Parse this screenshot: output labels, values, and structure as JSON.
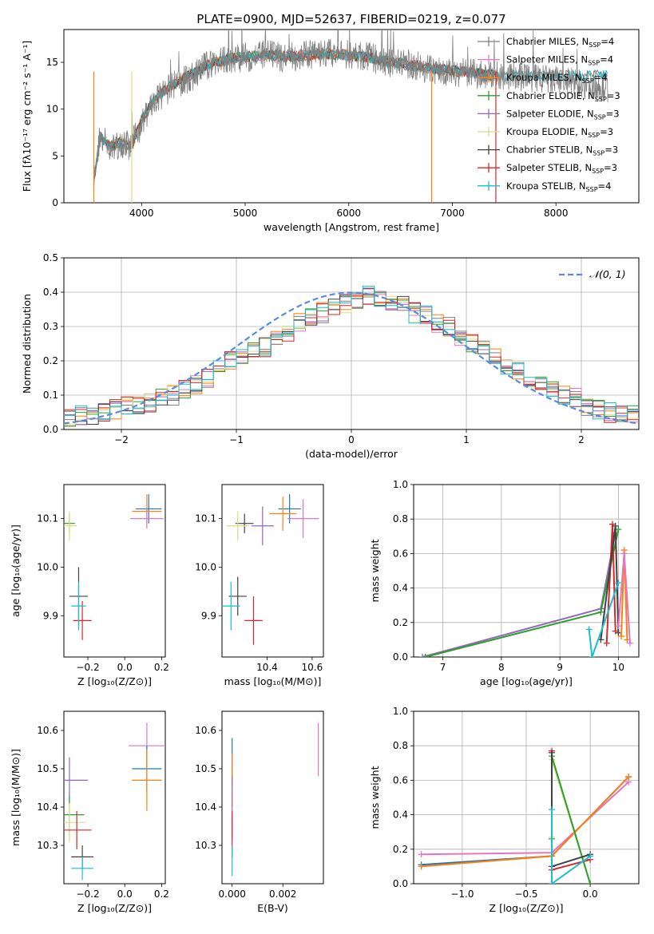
{
  "figure_title": "PLATE=0900, MJD=52637, FIBERID=0219, z=0.077",
  "legend_top": [
    {
      "label": "Chabrier MILES, N",
      "sub": "SSP",
      "tail": "=4",
      "color": "#7f7f7f"
    },
    {
      "label": "Salpeter MILES, N",
      "sub": "SSP",
      "tail": "=4",
      "color": "#e377c2"
    },
    {
      "label": "Kroupa MILES, N",
      "sub": "SSP",
      "tail": "=4",
      "color": "#ff7f0e"
    },
    {
      "label": "Chabrier ELODIE, N",
      "sub": "SSP",
      "tail": "=3",
      "color": "#2ca02c"
    },
    {
      "label": "Salpeter ELODIE, N",
      "sub": "SSP",
      "tail": "=3",
      "color": "#9467bd"
    },
    {
      "label": "Kroupa ELODIE, N",
      "sub": "SSP",
      "tail": "=3",
      "color": "#dbdb8d"
    },
    {
      "label": "Chabrier STELIB, N",
      "sub": "SSP",
      "tail": "=3",
      "color": "#404040"
    },
    {
      "label": "Salpeter STELIB, N",
      "sub": "SSP",
      "tail": "=3",
      "color": "#d62728"
    },
    {
      "label": "Kroupa STELIB, N",
      "sub": "SSP",
      "tail": "=4",
      "color": "#17becf"
    }
  ],
  "chart_data": [
    {
      "id": "spectrum",
      "type": "line",
      "xlabel": "wavelength [Angstrom, rest frame]",
      "ylabel": "Flux [fλ10⁻¹⁷ erg cm⁻² s⁻¹ A⁻¹]",
      "xlim": [
        3250,
        8800
      ],
      "ylim": [
        0,
        18.5
      ],
      "xticks": [
        "4000",
        "5000",
        "6000",
        "7000",
        "8000"
      ],
      "yticks": [
        "0",
        "5",
        "10",
        "15"
      ],
      "grid": false,
      "data_color": "#808080",
      "data": {
        "x": [
          3540,
          3600,
          3700,
          3800,
          3900,
          4000,
          4100,
          4200,
          4300,
          4400,
          4500,
          4600,
          4700,
          4800,
          4900,
          5000,
          5200,
          5400,
          5600,
          5800,
          6000,
          6200,
          6400,
          6600,
          6800,
          7000,
          7200,
          7400,
          7600,
          7800,
          8000,
          8200,
          8400,
          8500
        ],
        "y": [
          2.0,
          7.5,
          5.5,
          6.5,
          6.0,
          8.5,
          10.5,
          11.5,
          12.5,
          13.0,
          13.5,
          14.5,
          15.0,
          15.2,
          15.5,
          15.5,
          15.8,
          15.5,
          15.8,
          16.0,
          15.8,
          15.5,
          15.0,
          14.8,
          14.2,
          14.0,
          13.8,
          13.6,
          13.5,
          13.3,
          13.0,
          12.8,
          12.5,
          12.3
        ]
      },
      "model": {
        "x": [
          3540,
          3600,
          3700,
          3800,
          3900,
          4000,
          4100,
          4200,
          4300,
          4400,
          4500,
          4600,
          4700,
          4800,
          4900,
          5000,
          5200,
          5400,
          5600,
          5800,
          6000,
          6200,
          6400,
          6600,
          6800,
          7000,
          7200,
          7400
        ],
        "y": [
          2.5,
          7.0,
          6.0,
          6.5,
          6.0,
          8.8,
          10.6,
          11.8,
          12.6,
          13.2,
          13.8,
          14.5,
          15.0,
          15.2,
          15.5,
          15.6,
          15.8,
          15.6,
          15.8,
          15.9,
          15.8,
          15.5,
          15.0,
          14.7,
          14.3,
          14.1,
          13.9,
          13.6
        ]
      }
    },
    {
      "id": "residuals",
      "type": "line",
      "xlabel": "(data-model)/error",
      "ylabel": "Normed distribution",
      "xlim": [
        -2.5,
        2.5
      ],
      "ylim": [
        0,
        0.5
      ],
      "xticks": [
        "−2",
        "−1",
        "0",
        "1",
        "2"
      ],
      "yticks": [
        "0.0",
        "0.1",
        "0.2",
        "0.3",
        "0.4",
        "0.5"
      ],
      "grid": true,
      "legend": "𝒩(0, 1)",
      "reference": "N(0,1) gaussian",
      "bins": {
        "start": -2.5,
        "width": 0.1
      },
      "histogram_example": [
        0.03,
        0.04,
        0.04,
        0.05,
        0.06,
        0.07,
        0.07,
        0.08,
        0.09,
        0.1,
        0.12,
        0.13,
        0.15,
        0.18,
        0.2,
        0.22,
        0.23,
        0.24,
        0.27,
        0.28,
        0.31,
        0.33,
        0.34,
        0.36,
        0.37,
        0.38,
        0.39,
        0.38,
        0.37,
        0.36,
        0.34,
        0.33,
        0.31,
        0.3,
        0.27,
        0.25,
        0.23,
        0.21,
        0.19,
        0.17,
        0.14,
        0.13,
        0.12,
        0.1,
        0.09,
        0.07,
        0.06,
        0.05,
        0.05,
        0.04
      ]
    },
    {
      "id": "age_vs_Z",
      "type": "scatter",
      "xlabel": "Z [log₁₀(Z/Z⊙)]",
      "ylabel": "age  [log₁₀(age/yr)]",
      "xlim": [
        -0.33,
        0.22
      ],
      "ylim": [
        9.815,
        10.17
      ],
      "xticks": [
        "−0.2",
        "0.0",
        "0.2"
      ],
      "yticks": [
        "9.9",
        "10.0",
        "10.1"
      ],
      "grid": false,
      "points": [
        {
          "x": 0.13,
          "y": 10.12,
          "xerr": 0.07,
          "yerr": 0.03,
          "color": "#1f77b4"
        },
        {
          "x": 0.12,
          "y": 10.115,
          "xerr": 0.08,
          "yerr": 0.035,
          "color": "#ff7f0e"
        },
        {
          "x": 0.12,
          "y": 10.1,
          "xerr": 0.09,
          "yerr": 0.02,
          "color": "#e377c2"
        },
        {
          "x": -0.3,
          "y": 10.09,
          "xerr": 0.03,
          "yerr": 0.02,
          "color": "#2ca02c"
        },
        {
          "x": -0.3,
          "y": 10.085,
          "xerr": 0.04,
          "yerr": 0.03,
          "color": "#dbdb8d"
        },
        {
          "x": -0.25,
          "y": 9.94,
          "xerr": 0.05,
          "yerr": 0.06,
          "color": "#404040"
        },
        {
          "x": -0.23,
          "y": 9.89,
          "xerr": 0.05,
          "yerr": 0.04,
          "color": "#d62728"
        },
        {
          "x": -0.25,
          "y": 9.92,
          "xerr": 0.04,
          "yerr": 0.05,
          "color": "#17becf"
        }
      ]
    },
    {
      "id": "age_vs_mass",
      "type": "scatter",
      "xlabel": "mass [log₁₀(M/M⊙)]",
      "ylabel": "",
      "xlim": [
        10.2,
        10.65
      ],
      "ylim": [
        9.815,
        10.17
      ],
      "xticks": [
        "10.4",
        "10.6"
      ],
      "yticks": [
        "9.9",
        "10.0",
        "10.1"
      ],
      "grid": false,
      "points": [
        {
          "x": 10.5,
          "y": 10.12,
          "xerr": 0.05,
          "yerr": 0.03,
          "color": "#1f77b4"
        },
        {
          "x": 10.47,
          "y": 10.11,
          "xerr": 0.06,
          "yerr": 0.035,
          "color": "#ff7f0e"
        },
        {
          "x": 10.56,
          "y": 10.1,
          "xerr": 0.07,
          "yerr": 0.04,
          "color": "#e377c2"
        },
        {
          "x": 10.38,
          "y": 10.085,
          "xerr": 0.05,
          "yerr": 0.04,
          "color": "#9467bd"
        },
        {
          "x": 10.3,
          "y": 10.09,
          "xerr": 0.04,
          "yerr": 0.02,
          "color": "#404040"
        },
        {
          "x": 10.27,
          "y": 10.085,
          "xerr": 0.05,
          "yerr": 0.03,
          "color": "#dbdb8d"
        },
        {
          "x": 10.27,
          "y": 9.94,
          "xerr": 0.04,
          "yerr": 0.04,
          "color": "#404040"
        },
        {
          "x": 10.34,
          "y": 9.89,
          "xerr": 0.04,
          "yerr": 0.05,
          "color": "#d62728"
        },
        {
          "x": 10.24,
          "y": 9.92,
          "xerr": 0.04,
          "yerr": 0.05,
          "color": "#17becf"
        }
      ]
    },
    {
      "id": "weight_vs_age",
      "type": "line",
      "xlabel": "age  [log₁₀(age/yr)]",
      "ylabel": "mass weight",
      "xlim": [
        6.5,
        10.35
      ],
      "ylim": [
        0,
        1
      ],
      "xticks": [
        "7",
        "8",
        "9",
        "10"
      ],
      "yticks": [
        "0.0",
        "0.2",
        "0.4",
        "0.6",
        "0.8",
        "1.0"
      ],
      "grid": true,
      "series": [
        {
          "color": "#9467bd",
          "x": [
            6.65,
            9.7,
            9.95
          ],
          "y": [
            0.0,
            0.28,
            0.72
          ]
        },
        {
          "color": "#2ca02c",
          "x": [
            6.7,
            9.7,
            10.0
          ],
          "y": [
            0.0,
            0.26,
            0.74
          ]
        },
        {
          "color": "#d62728",
          "x": [
            9.8,
            9.9,
            9.95
          ],
          "y": [
            0.08,
            0.77,
            0.15
          ]
        },
        {
          "color": "#404040",
          "x": [
            9.7,
            9.95,
            10.0
          ],
          "y": [
            0.1,
            0.76,
            0.14
          ]
        },
        {
          "color": "#17becf",
          "x": [
            9.5,
            9.55,
            10.0
          ],
          "y": [
            0.16,
            0.0,
            0.43
          ]
        },
        {
          "color": "#ff7f0e",
          "x": [
            10.05,
            10.1,
            10.15
          ],
          "y": [
            0.12,
            0.62,
            0.1
          ]
        },
        {
          "color": "#e377c2",
          "x": [
            10.0,
            10.1,
            10.2
          ],
          "y": [
            0.18,
            0.6,
            0.08
          ]
        }
      ]
    },
    {
      "id": "mass_vs_Z",
      "type": "scatter",
      "xlabel": "Z [log₁₀(Z/Z⊙)]",
      "ylabel": "mass [log₁₀(M/M⊙)]",
      "xlim": [
        -0.33,
        0.22
      ],
      "ylim": [
        10.2,
        10.65
      ],
      "xticks": [
        "−0.2",
        "0.0",
        "0.2"
      ],
      "yticks": [
        "10.3",
        "10.4",
        "10.5",
        "10.6"
      ],
      "grid": false,
      "points": [
        {
          "x": 0.12,
          "y": 10.56,
          "xerr": 0.1,
          "yerr": 0.06,
          "color": "#e377c2"
        },
        {
          "x": 0.12,
          "y": 10.5,
          "xerr": 0.08,
          "yerr": 0.06,
          "color": "#1f77b4"
        },
        {
          "x": 0.12,
          "y": 10.47,
          "xerr": 0.08,
          "yerr": 0.08,
          "color": "#ff7f0e"
        },
        {
          "x": -0.3,
          "y": 10.47,
          "xerr": 0.1,
          "yerr": 0.06,
          "color": "#9467bd"
        },
        {
          "x": -0.3,
          "y": 10.38,
          "xerr": 0.08,
          "yerr": 0.05,
          "color": "#2ca02c"
        },
        {
          "x": -0.3,
          "y": 10.36,
          "xerr": 0.09,
          "yerr": 0.05,
          "color": "#dbdb8d"
        },
        {
          "x": -0.26,
          "y": 10.34,
          "xerr": 0.08,
          "yerr": 0.05,
          "color": "#d62728"
        },
        {
          "x": -0.23,
          "y": 10.27,
          "xerr": 0.06,
          "yerr": 0.03,
          "color": "#404040"
        },
        {
          "x": -0.23,
          "y": 10.24,
          "xerr": 0.06,
          "yerr": 0.03,
          "color": "#17becf"
        }
      ]
    },
    {
      "id": "mass_vs_ebv",
      "type": "scatter",
      "xlabel": "E(B-V)",
      "ylabel": "",
      "xlim": [
        -0.0004,
        0.0036
      ],
      "ylim": [
        10.2,
        10.65
      ],
      "xticks": [
        "0.000",
        "0.002"
      ],
      "yticks": [
        "10.3",
        "10.4",
        "10.5",
        "10.6"
      ],
      "grid": false,
      "points": [
        {
          "x": 0.0,
          "y": 10.52,
          "yerr": 0.06,
          "color": "#1f77b4"
        },
        {
          "x": 0.0,
          "y": 10.47,
          "yerr": 0.07,
          "color": "#ff7f0e"
        },
        {
          "x": 0.0,
          "y": 10.4,
          "yerr": 0.08,
          "color": "#9467bd"
        },
        {
          "x": 0.0,
          "y": 10.33,
          "yerr": 0.06,
          "color": "#d62728"
        },
        {
          "x": 0.0,
          "y": 10.26,
          "yerr": 0.04,
          "color": "#17becf"
        },
        {
          "x": 0.0034,
          "y": 10.55,
          "yerr": 0.07,
          "color": "#e377c2"
        }
      ]
    },
    {
      "id": "weight_vs_Z",
      "type": "line",
      "xlabel": "Z [log₁₀(Z/Z⊙)]",
      "ylabel": "mass weight",
      "xlim": [
        -1.38,
        0.38
      ],
      "ylim": [
        0,
        1
      ],
      "xticks": [
        "−1.0",
        "−0.5",
        "0.0"
      ],
      "yticks": [
        "0.0",
        "0.2",
        "0.4",
        "0.6",
        "0.8",
        "1.0"
      ],
      "grid": true,
      "series": [
        {
          "color": "#e377c2",
          "x": [
            -1.32,
            -0.3,
            0.3
          ],
          "y": [
            0.17,
            0.18,
            0.59
          ]
        },
        {
          "color": "#1f77b4",
          "x": [
            -1.32,
            -0.3,
            0.3
          ],
          "y": [
            0.11,
            0.16,
            0.62
          ]
        },
        {
          "color": "#ff7f0e",
          "x": [
            -1.32,
            -0.3,
            0.3
          ],
          "y": [
            0.1,
            0.16,
            0.62
          ]
        },
        {
          "color": "#dbdb8d",
          "x": [
            -0.3,
            -0.3,
            0.0
          ],
          "y": [
            0.27,
            0.72,
            0.0
          ]
        },
        {
          "color": "#2ca02c",
          "x": [
            -0.3,
            -0.3,
            0.0
          ],
          "y": [
            0.26,
            0.74,
            0.0
          ]
        },
        {
          "color": "#d62728",
          "x": [
            -0.3,
            -0.3,
            0.0
          ],
          "y": [
            0.77,
            0.08,
            0.14
          ]
        },
        {
          "color": "#404040",
          "x": [
            -0.3,
            -0.3,
            0.0
          ],
          "y": [
            0.76,
            0.1,
            0.17
          ]
        },
        {
          "color": "#17becf",
          "x": [
            -0.3,
            -0.3,
            0.0
          ],
          "y": [
            0.43,
            0.0,
            0.16
          ]
        }
      ]
    }
  ]
}
